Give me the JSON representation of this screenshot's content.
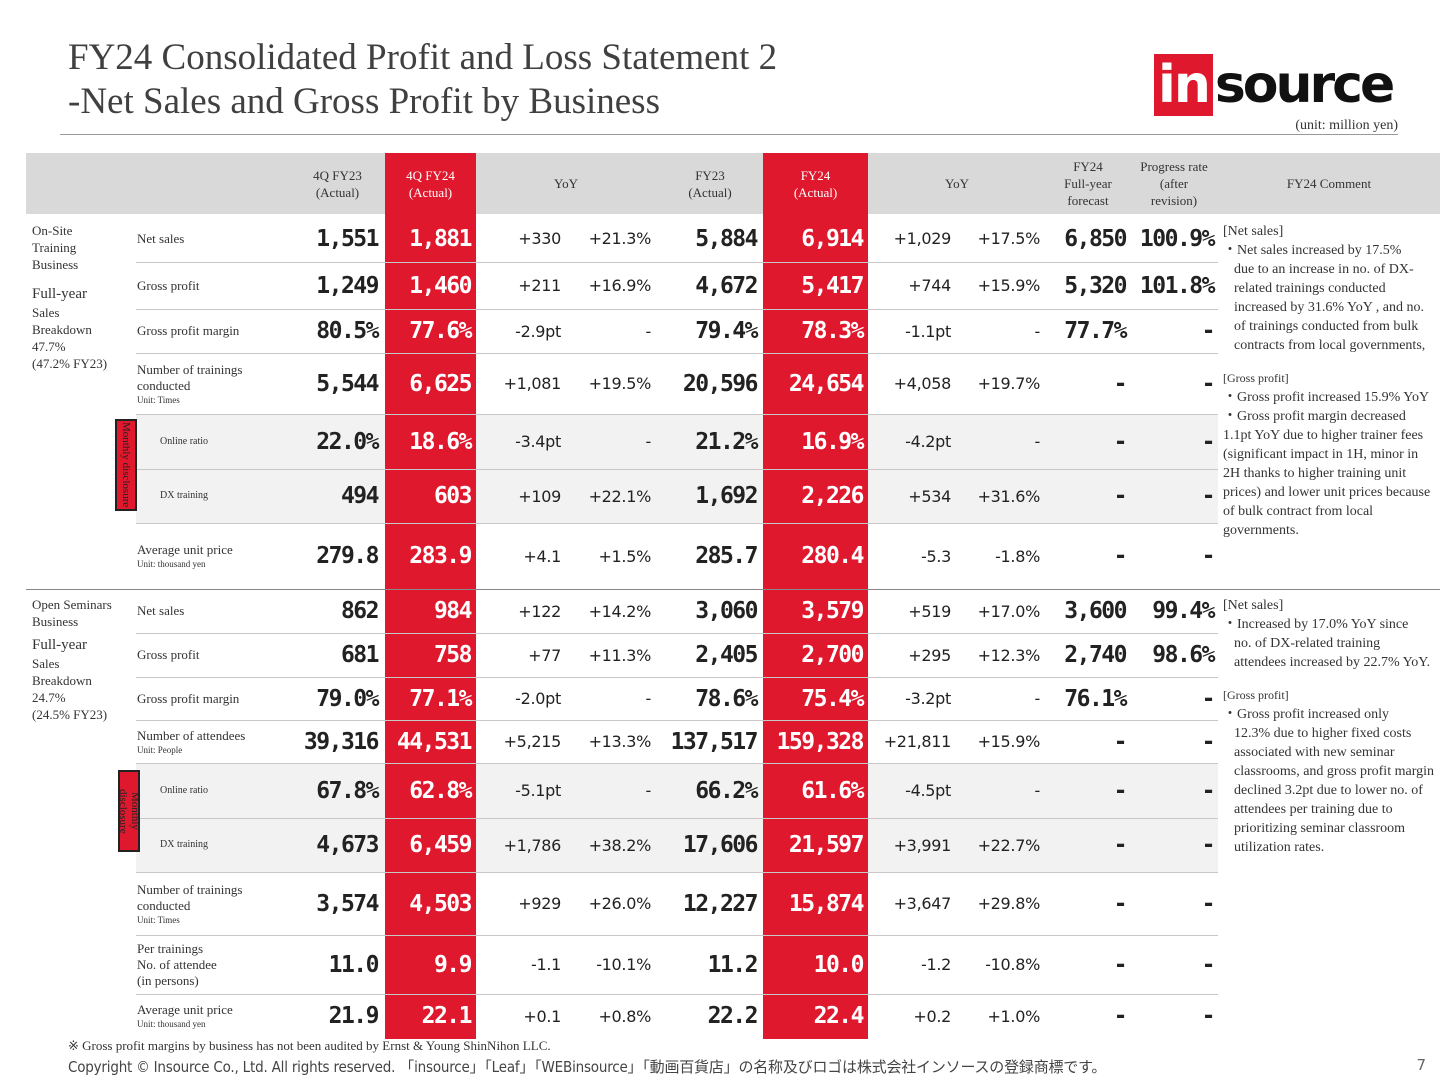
{
  "title_line1": "FY24 Consolidated Profit and Loss Statement 2",
  "title_line2": "-Net Sales and Gross Profit by Business",
  "logo": {
    "highlight": "in",
    "rest": "source"
  },
  "unit_note": "(unit: million yen)",
  "headers": {
    "q4fy23": "4Q FY23\n(Actual)",
    "q4fy24": "4Q FY24\n(Actual)",
    "yoy1": "YoY",
    "fy23": "FY23\n(Actual)",
    "fy24": "FY24\n(Actual)",
    "yoy2": "YoY",
    "forecast": "FY24\nFull-year\nforecast",
    "progress": "Progress rate\n(after\nrevision)",
    "comment": "FY24 Comment"
  },
  "sections": {
    "onsite": {
      "name": "On-Site\nTraining\nBusiness",
      "breakdown_title": "Full-year",
      "breakdown": "Sales\nBreakdown\n47.7%\n(47.2% FY23)"
    },
    "open": {
      "name": "Open Seminars\nBusiness",
      "breakdown_title": "Full-year",
      "breakdown": "Sales\nBreakdown\n24.7%\n(24.5% FY23)"
    }
  },
  "monthly_disclosure": "Monthly disclosure",
  "rows": [
    {
      "label": "Net sales",
      "unit": "",
      "q4fy23": "1,551",
      "q4fy24": "1,881",
      "yoy_abs": "+330",
      "yoy_pct": "+21.3%",
      "fy23": "5,884",
      "fy24": "6,914",
      "fy_yoy_abs": "+1,029",
      "fy_yoy_pct": "+17.5%",
      "forecast": "6,850",
      "progress": "100.9%"
    },
    {
      "label": "Gross profit",
      "unit": "",
      "q4fy23": "1,249",
      "q4fy24": "1,460",
      "yoy_abs": "+211",
      "yoy_pct": "+16.9%",
      "fy23": "4,672",
      "fy24": "5,417",
      "fy_yoy_abs": "+744",
      "fy_yoy_pct": "+15.9%",
      "forecast": "5,320",
      "progress": "101.8%"
    },
    {
      "label": "Gross profit margin",
      "unit": "",
      "q4fy23": "80.5%",
      "q4fy24": "77.6%",
      "yoy_abs": "-2.9pt",
      "yoy_pct": "-",
      "fy23": "79.4%",
      "fy24": "78.3%",
      "fy_yoy_abs": "-1.1pt",
      "fy_yoy_pct": "-",
      "forecast": "77.7%",
      "progress": "-"
    },
    {
      "label": "Number of trainings\nconducted",
      "unit": "Unit: Times",
      "q4fy23": "5,544",
      "q4fy24": "6,625",
      "yoy_abs": "+1,081",
      "yoy_pct": "+19.5%",
      "fy23": "20,596",
      "fy24": "24,654",
      "fy_yoy_abs": "+4,058",
      "fy_yoy_pct": "+19.7%",
      "forecast": "-",
      "progress": "-"
    },
    {
      "label": "Online ratio",
      "unit": "",
      "q4fy23": "22.0%",
      "q4fy24": "18.6%",
      "yoy_abs": "-3.4pt",
      "yoy_pct": "-",
      "fy23": "21.2%",
      "fy24": "16.9%",
      "fy_yoy_abs": "-4.2pt",
      "fy_yoy_pct": "-",
      "forecast": "-",
      "progress": "-"
    },
    {
      "label": "DX training",
      "unit": "",
      "q4fy23": "494",
      "q4fy24": "603",
      "yoy_abs": "+109",
      "yoy_pct": "+22.1%",
      "fy23": "1,692",
      "fy24": "2,226",
      "fy_yoy_abs": "+534",
      "fy_yoy_pct": "+31.6%",
      "forecast": "-",
      "progress": "-"
    },
    {
      "label": "Average unit price",
      "unit": "Unit: thousand yen",
      "q4fy23": "279.8",
      "q4fy24": "283.9",
      "yoy_abs": "+4.1",
      "yoy_pct": "+1.5%",
      "fy23": "285.7",
      "fy24": "280.4",
      "fy_yoy_abs": "-5.3",
      "fy_yoy_pct": "-1.8%",
      "forecast": "-",
      "progress": "-"
    },
    {
      "label": "Net sales",
      "unit": "",
      "q4fy23": "862",
      "q4fy24": "984",
      "yoy_abs": "+122",
      "yoy_pct": "+14.2%",
      "fy23": "3,060",
      "fy24": "3,579",
      "fy_yoy_abs": "+519",
      "fy_yoy_pct": "+17.0%",
      "forecast": "3,600",
      "progress": "99.4%"
    },
    {
      "label": "Gross profit",
      "unit": "",
      "q4fy23": "681",
      "q4fy24": "758",
      "yoy_abs": "+77",
      "yoy_pct": "+11.3%",
      "fy23": "2,405",
      "fy24": "2,700",
      "fy_yoy_abs": "+295",
      "fy_yoy_pct": "+12.3%",
      "forecast": "2,740",
      "progress": "98.6%"
    },
    {
      "label": "Gross profit margin",
      "unit": "",
      "q4fy23": "79.0%",
      "q4fy24": "77.1%",
      "yoy_abs": "-2.0pt",
      "yoy_pct": "-",
      "fy23": "78.6%",
      "fy24": "75.4%",
      "fy_yoy_abs": "-3.2pt",
      "fy_yoy_pct": "-",
      "forecast": "76.1%",
      "progress": "-"
    },
    {
      "label": "Number of attendees",
      "unit": "Unit: People",
      "q4fy23": "39,316",
      "q4fy24": "44,531",
      "yoy_abs": "+5,215",
      "yoy_pct": "+13.3%",
      "fy23": "137,517",
      "fy24": "159,328",
      "fy_yoy_abs": "+21,811",
      "fy_yoy_pct": "+15.9%",
      "forecast": "-",
      "progress": "-"
    },
    {
      "label": "Online ratio",
      "unit": "",
      "q4fy23": "67.8%",
      "q4fy24": "62.8%",
      "yoy_abs": "-5.1pt",
      "yoy_pct": "-",
      "fy23": "66.2%",
      "fy24": "61.6%",
      "fy_yoy_abs": "-4.5pt",
      "fy_yoy_pct": "-",
      "forecast": "-",
      "progress": "-"
    },
    {
      "label": "DX training",
      "unit": "",
      "q4fy23": "4,673",
      "q4fy24": "6,459",
      "yoy_abs": "+1,786",
      "yoy_pct": "+38.2%",
      "fy23": "17,606",
      "fy24": "21,597",
      "fy_yoy_abs": "+3,991",
      "fy_yoy_pct": "+22.7%",
      "forecast": "-",
      "progress": "-"
    },
    {
      "label": "Number of trainings\nconducted",
      "unit": "Unit: Times",
      "q4fy23": "3,574",
      "q4fy24": "4,503",
      "yoy_abs": "+929",
      "yoy_pct": "+26.0%",
      "fy23": "12,227",
      "fy24": "15,874",
      "fy_yoy_abs": "+3,647",
      "fy_yoy_pct": "+29.8%",
      "forecast": "-",
      "progress": "-"
    },
    {
      "label": "Per trainings\nNo. of attendee\n (in persons)",
      "unit": "",
      "q4fy23": "11.0",
      "q4fy24": "9.9",
      "yoy_abs": "-1.1",
      "yoy_pct": "-10.1%",
      "fy23": "11.2",
      "fy24": "10.0",
      "fy_yoy_abs": "-1.2",
      "fy_yoy_pct": "-10.8%",
      "forecast": "-",
      "progress": "-"
    },
    {
      "label": "Average unit price",
      "unit": "Unit: thousand yen",
      "q4fy23": "21.9",
      "q4fy24": "22.1",
      "yoy_abs": "+0.1",
      "yoy_pct": "+0.8%",
      "fy23": "22.2",
      "fy24": "22.4",
      "fy_yoy_abs": "+0.2",
      "fy_yoy_pct": "+1.0%",
      "forecast": "-",
      "progress": "-"
    }
  ],
  "comments": {
    "onsite_net_title": "[Net sales]",
    "onsite_net_bullet": "・Net sales increased by 17.5%",
    "onsite_net_cont": "due to an increase in no. of DX-related trainings conducted increased by 31.6% YoY , and no. of trainings conducted from bulk contracts from local governments,",
    "onsite_gp_title": "[Gross profit]",
    "onsite_gp_1": "・Gross profit increased 15.9% YoY",
    "onsite_gp_2": "・Gross profit margin decreased 1.1pt YoY due to higher trainer fees (significant impact in 1H, minor in 2H thanks to higher training unit prices)  and lower unit prices because of bulk contract from local governments.",
    "open_net_title": "[Net sales]",
    "open_net_bullet": "・Increased by 17.0% YoY since",
    "open_net_cont": "no. of DX-related training attendees increased by 22.7% YoY.",
    "open_gp_title": "[Gross profit]",
    "open_gp_bullet": "・Gross profit increased only",
    "open_gp_cont": "12.3% due to higher fixed costs associated with new seminar classrooms, and gross profit margin declined 3.2pt due to lower no. of attendees per training due to prioritizing seminar classroom utilization rates."
  },
  "footnote": "※ Gross profit margins by business has not been audited by Ernst & Young ShinNihon LLC.",
  "copyright": "Copyright © Insource Co., Ltd. All rights reserved. 「insource」「Leaf」「WEBinsource」「動画百貨店」の名称及びロゴは株式会社インソースの登録商標です。",
  "page_number": "7",
  "colors": {
    "accent": "#e0182d",
    "header_bg": "#d9d9d9",
    "shade": "#f2f2f2"
  }
}
